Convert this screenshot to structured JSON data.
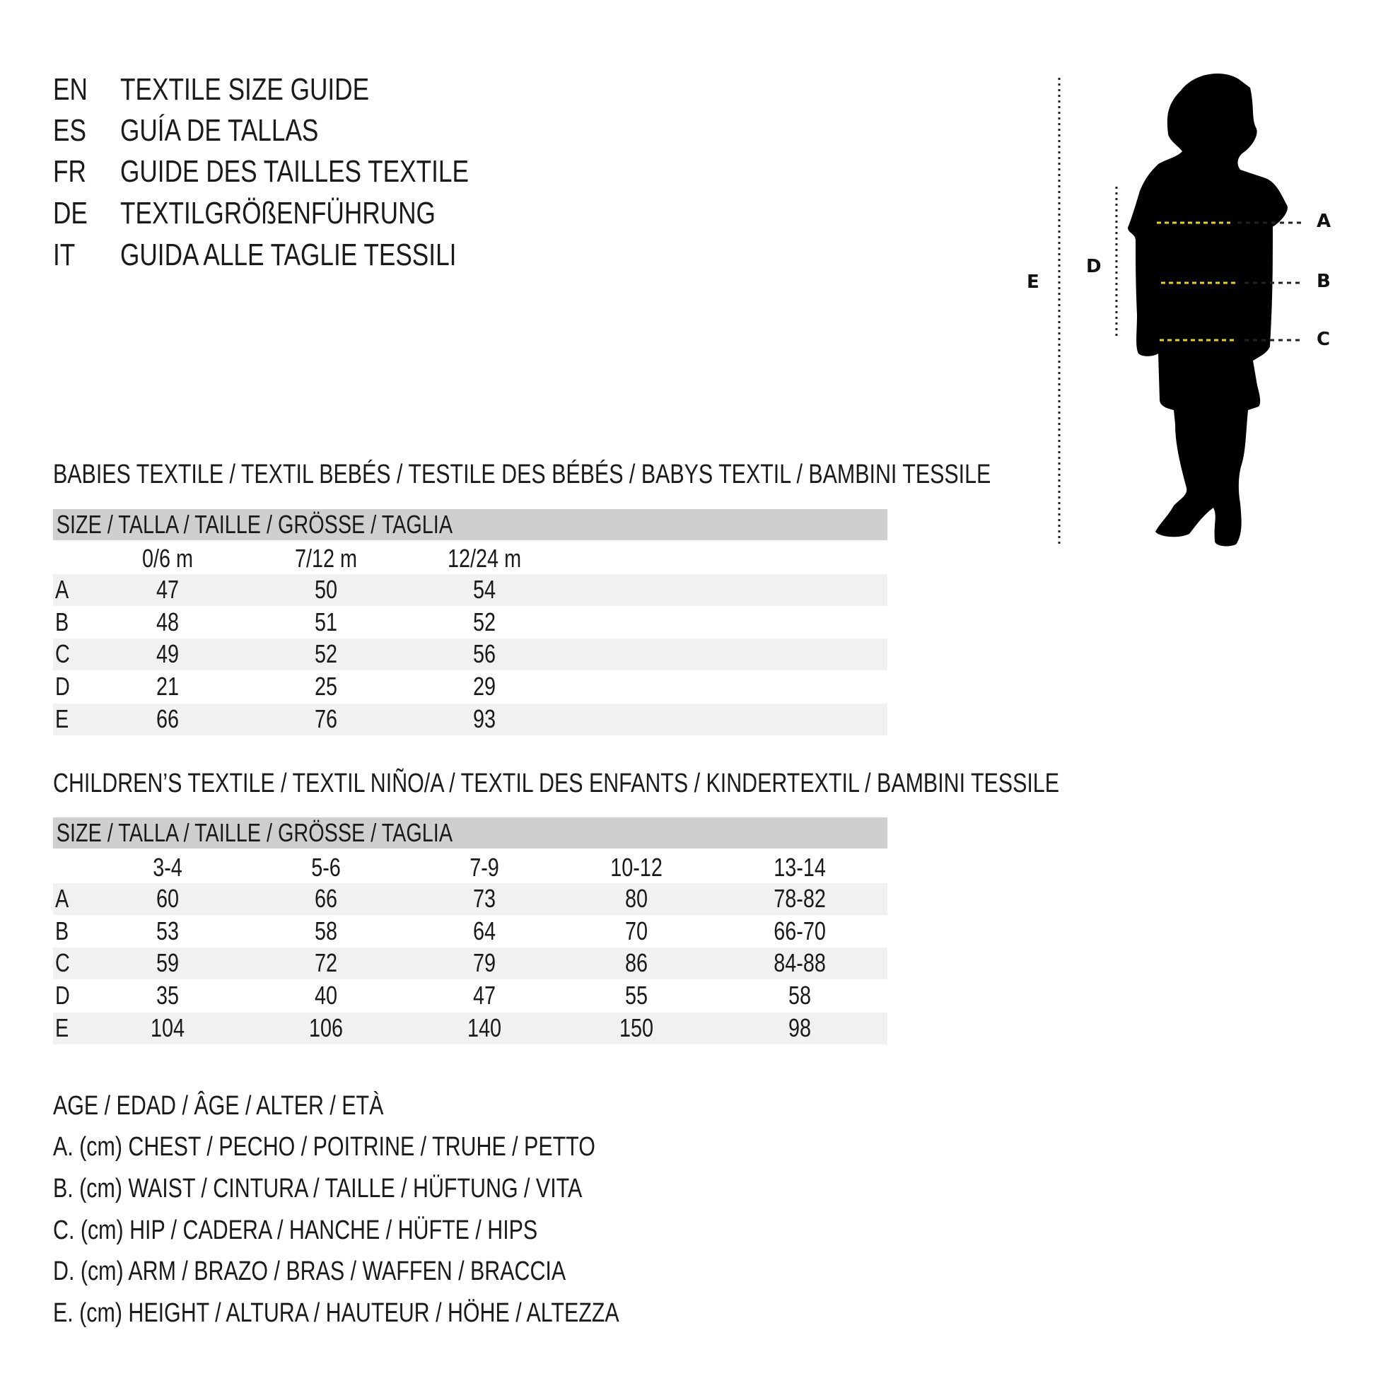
{
  "titles": [
    {
      "code": "EN",
      "text": "TEXTILE SIZE GUIDE"
    },
    {
      "code": "ES",
      "text": "GUÍA DE TALLAS"
    },
    {
      "code": "FR",
      "text": "GUIDE DES TAILLES TEXTILE"
    },
    {
      "code": "DE",
      "text": "TEXTILGRÖßENFÜHRUNG"
    },
    {
      "code": "IT",
      "text": "GUIDA ALLE TAGLIE TESSILI"
    }
  ],
  "babies": {
    "heading": "BABIES TEXTILE / TEXTIL BEBÉS / TESTILE DES BÉBÉS / BABYS TEXTIL / BAMBINI TESSILE",
    "size_header": "SIZE / TALLA / TAILLE / GRÖSSE / TAGLIA",
    "columns": [
      "0/6 m",
      "7/12 m",
      "12/24 m"
    ],
    "rows": [
      {
        "label": "A",
        "values": [
          "47",
          "50",
          "54"
        ]
      },
      {
        "label": "B",
        "values": [
          "48",
          "51",
          "52"
        ]
      },
      {
        "label": "C",
        "values": [
          "49",
          "52",
          "56"
        ]
      },
      {
        "label": "D",
        "values": [
          "21",
          "25",
          "29"
        ]
      },
      {
        "label": "E",
        "values": [
          "66",
          "76",
          "93"
        ]
      }
    ]
  },
  "children": {
    "heading": "CHILDREN’S TEXTILE / TEXTIL NIÑO/A / TEXTIL DES ENFANTS / KINDERTEXTIL / BAMBINI TESSILE",
    "size_header": "SIZE / TALLA / TAILLE / GRÖSSE / TAGLIA",
    "columns": [
      "3-4",
      "5-6",
      "7-9",
      "10-12",
      "13-14"
    ],
    "rows": [
      {
        "label": "A",
        "values": [
          "60",
          "66",
          "73",
          "80",
          "78-82"
        ]
      },
      {
        "label": "B",
        "values": [
          "53",
          "58",
          "64",
          "70",
          "66-70"
        ]
      },
      {
        "label": "C",
        "values": [
          "59",
          "72",
          "79",
          "86",
          "84-88"
        ]
      },
      {
        "label": "D",
        "values": [
          "35",
          "40",
          "47",
          "55",
          "58"
        ]
      },
      {
        "label": "E",
        "values": [
          "104",
          "106",
          "140",
          "150",
          "98"
        ]
      }
    ]
  },
  "legend": [
    "AGE / EDAD / ÂGE / ALTER / ETÀ",
    "A. (cm) CHEST / PECHO / POITRINE / TRUHE / PETTO",
    "B. (cm) WAIST / CINTURA / TAILLE / HÜFTUNG / VITA",
    "C. (cm) HIP / CADERA / HANCHE / HÜFTE / HIPS",
    "D. (cm) ARM / BRAZO / BRAS / WAFFEN / BRACCIA",
    "E. (cm) HEIGHT / ALTURA / HAUTEUR / HÖHE / ALTEZZA"
  ],
  "figure": {
    "labels": {
      "A": "A",
      "B": "B",
      "C": "C",
      "D": "D",
      "E": "E"
    },
    "colors": {
      "silhouette": "#000000",
      "measure_line": "#e8d21a",
      "guide_line": "#222222",
      "header_bar": "#cfcfcf",
      "row_band": "#f1f1f1"
    }
  }
}
